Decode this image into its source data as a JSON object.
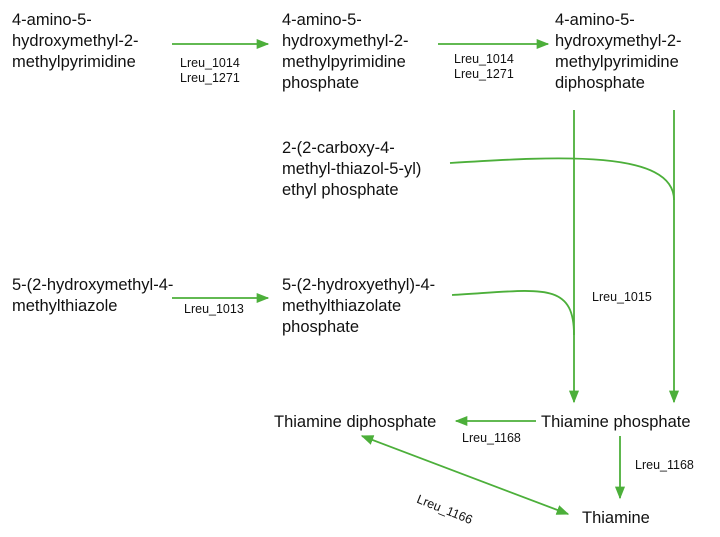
{
  "nodes": {
    "hmp": "4-amino-5-\nhydroxymethyl-2-\nmethylpyrimidine",
    "hmp_p": "4-amino-5-\nhydroxymethyl-2-\nmethylpyrimidine\nphosphate",
    "hmp_pp": "4-amino-5-\nhydroxymethyl-2-\nmethylpyrimidine\ndiphosphate",
    "cthz_p": "2-(2-carboxy-4-\nmethyl-thiazol-5-yl)\nethyl phosphate",
    "thz": "5-(2-hydroxymethyl-4-\nmethylthiazole",
    "thz_p": "5-(2-hydroxyethyl)-4-\nmethylthiazolate\nphosphate",
    "tpp": "Thiamine diphosphate",
    "tmp": "Thiamine phosphate",
    "thiamine": "Thiamine"
  },
  "enzymes": {
    "e1": "Lreu_1014\nLreu_1271",
    "e2": "Lreu_1014\nLreu_1271",
    "e3": "Lreu_1013",
    "e4": "Lreu_1015",
    "e5": "Lreu_1168",
    "e6": "Lreu_1168",
    "e7": "Lreu_1166"
  },
  "colors": {
    "arrow": "#4caf3a",
    "text": "#111111"
  }
}
